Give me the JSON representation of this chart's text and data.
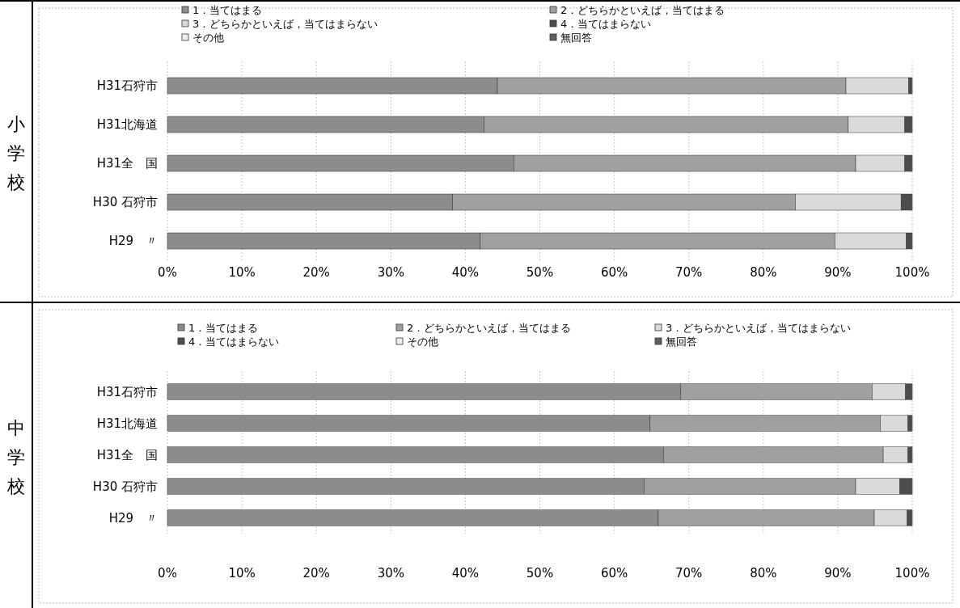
{
  "chart_data": [
    {
      "type": "bar",
      "orientation": "horizontal",
      "stacked": true,
      "title": "小学校",
      "categories": [
        "H31石狩市",
        "H31北海道",
        "H31全　国",
        "H30 石狩市",
        "H29　〃"
      ],
      "xlim": [
        0,
        100
      ],
      "xticks": [
        {
          "value": 0,
          "label": "0%"
        },
        {
          "value": 10,
          "label": "10%"
        },
        {
          "value": 20,
          "label": "20%"
        },
        {
          "value": 30,
          "label": "30%"
        },
        {
          "value": 40,
          "label": "40%"
        },
        {
          "value": 50,
          "label": "50%"
        },
        {
          "value": 60,
          "label": "60%"
        },
        {
          "value": 70,
          "label": "70%"
        },
        {
          "value": 80,
          "label": "80%"
        },
        {
          "value": 90,
          "label": "90%"
        },
        {
          "value": 100,
          "label": "100%"
        }
      ],
      "grid": "x",
      "legend": "top",
      "series": [
        {
          "name": "1．当てはまる",
          "color": "#8c8c8c",
          "values": [
            44.3,
            42.5,
            46.5,
            38.3,
            42.0
          ]
        },
        {
          "name": "2．どちらかといえば，当てはまる",
          "color": "#a0a0a0",
          "values": [
            46.8,
            48.9,
            45.9,
            46.0,
            47.6
          ]
        },
        {
          "name": "3．どちらかといえば，当てはまらない",
          "color": "#dadada",
          "values": [
            8.4,
            7.6,
            6.6,
            14.2,
            9.6
          ]
        },
        {
          "name": "4．当てはまらない",
          "color": "#4d4d4d",
          "values": [
            0.3,
            0.8,
            0.8,
            1.3,
            0.6
          ]
        },
        {
          "name": "その他",
          "color": "#f0f0f0",
          "values": [
            0,
            0,
            0,
            0,
            0
          ]
        },
        {
          "name": "無回答",
          "color": "#606060",
          "values": [
            0.2,
            0.2,
            0.2,
            0.2,
            0.2
          ]
        }
      ]
    },
    {
      "type": "bar",
      "orientation": "horizontal",
      "stacked": true,
      "title": "中学校",
      "categories": [
        "H31石狩市",
        "H31北海道",
        "H31全　国",
        "H30 石狩市",
        "H29　〃"
      ],
      "xlim": [
        0,
        100
      ],
      "xticks": [
        {
          "value": 0,
          "label": "0%"
        },
        {
          "value": 10,
          "label": "10%"
        },
        {
          "value": 20,
          "label": "20%"
        },
        {
          "value": 30,
          "label": "30%"
        },
        {
          "value": 40,
          "label": "40%"
        },
        {
          "value": 50,
          "label": "50%"
        },
        {
          "value": 60,
          "label": "60%"
        },
        {
          "value": 70,
          "label": "70%"
        },
        {
          "value": 80,
          "label": "80%"
        },
        {
          "value": 90,
          "label": "90%"
        },
        {
          "value": 100,
          "label": "100%"
        }
      ],
      "grid": "x",
      "legend": "top",
      "series": [
        {
          "name": "1．当てはまる",
          "color": "#8c8c8c",
          "values": [
            68.9,
            64.8,
            66.6,
            64.0,
            65.9
          ]
        },
        {
          "name": "2．どちらかといえば，当てはまる",
          "color": "#a0a0a0",
          "values": [
            25.7,
            30.9,
            29.5,
            28.4,
            29.0
          ]
        },
        {
          "name": "3．どちらかといえば，当てはまらない",
          "color": "#dadada",
          "values": [
            4.5,
            3.7,
            3.3,
            5.9,
            4.4
          ]
        },
        {
          "name": "4．当てはまらない",
          "color": "#4d4d4d",
          "values": [
            0.7,
            0.4,
            0.4,
            1.5,
            0.5
          ]
        },
        {
          "name": "その他",
          "color": "#f0f0f0",
          "values": [
            0,
            0,
            0,
            0,
            0
          ]
        },
        {
          "name": "無回答",
          "color": "#606060",
          "values": [
            0.2,
            0.2,
            0.2,
            0.2,
            0.2
          ]
        }
      ]
    }
  ]
}
